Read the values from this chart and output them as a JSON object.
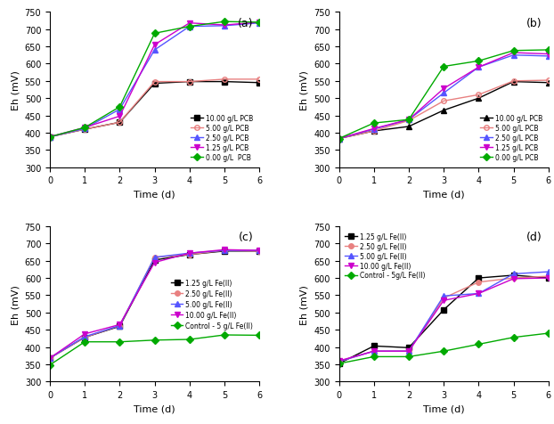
{
  "time": [
    0,
    1,
    2,
    3,
    4,
    5,
    6
  ],
  "subplot_a": {
    "legend_loc": "lower right",
    "legend_inside": true,
    "series": [
      {
        "label": "10.00 g/L PCB",
        "color": "#000000",
        "marker": "s",
        "mfc": "black",
        "values": [
          388,
          410,
          430,
          543,
          548,
          548,
          545
        ]
      },
      {
        "label": "5.00 g/L PCB",
        "color": "#e88080",
        "marker": "o",
        "mfc": "none",
        "values": [
          388,
          410,
          430,
          548,
          548,
          555,
          555
        ]
      },
      {
        "label": "2.50 g/L PCB",
        "color": "#5555ff",
        "marker": "^",
        "mfc": "#5555ff",
        "values": [
          388,
          412,
          468,
          640,
          708,
          710,
          718
        ]
      },
      {
        "label": "1.25 g/L PCB",
        "color": "#cc00cc",
        "marker": "v",
        "mfc": "#cc00cc",
        "values": [
          388,
          415,
          448,
          655,
          718,
          712,
          720
        ]
      },
      {
        "label": "0.00 g/L  PCB",
        "color": "#00aa00",
        "marker": "D",
        "mfc": "#00aa00",
        "values": [
          388,
          415,
          475,
          688,
          708,
          722,
          720
        ]
      }
    ]
  },
  "subplot_b": {
    "legend_loc": "lower right",
    "legend_inside": true,
    "series": [
      {
        "label": "10.00 g/L PCB",
        "color": "#000000",
        "marker": "^",
        "mfc": "black",
        "values": [
          383,
          405,
          418,
          465,
          500,
          548,
          545
        ]
      },
      {
        "label": "5.00 g/L PCB",
        "color": "#e88080",
        "marker": "o",
        "mfc": "none",
        "values": [
          383,
          405,
          435,
          492,
          510,
          550,
          552
        ]
      },
      {
        "label": "2.50 g/L PCB",
        "color": "#5555ff",
        "marker": "^",
        "mfc": "#5555ff",
        "values": [
          383,
          410,
          438,
          515,
          590,
          625,
          622
        ]
      },
      {
        "label": "1.25 g/L PCB",
        "color": "#cc00cc",
        "marker": "v",
        "mfc": "#cc00cc",
        "values": [
          383,
          412,
          438,
          528,
          590,
          632,
          628
        ]
      },
      {
        "label": "0.00 g/L PCB",
        "color": "#00aa00",
        "marker": "D",
        "mfc": "#00aa00",
        "values": [
          383,
          428,
          438,
          592,
          608,
          638,
          640
        ]
      }
    ]
  },
  "subplot_c": {
    "legend_loc": "center right",
    "legend_inside": true,
    "series": [
      {
        "label": "1.25 g/L Fe(II)",
        "color": "#000000",
        "marker": "s",
        "mfc": "black",
        "values": [
          368,
          428,
          460,
          652,
          668,
          678,
          678
        ]
      },
      {
        "label": "2.50 g/L Fe(II)",
        "color": "#e88080",
        "marker": "o",
        "mfc": "#e88080",
        "values": [
          368,
          428,
          462,
          660,
          668,
          680,
          678
        ]
      },
      {
        "label": "5.00 g/L Fe(II)",
        "color": "#5555ff",
        "marker": "^",
        "mfc": "#5555ff",
        "values": [
          368,
          430,
          462,
          660,
          672,
          680,
          680
        ]
      },
      {
        "label": "10.00 g/L Fe(II)",
        "color": "#cc00cc",
        "marker": "v",
        "mfc": "#cc00cc",
        "values": [
          368,
          438,
          465,
          645,
          672,
          682,
          680
        ]
      },
      {
        "label": "Control - 5 g/L Fe(II)",
        "color": "#00aa00",
        "marker": "D",
        "mfc": "#00aa00",
        "values": [
          348,
          415,
          415,
          420,
          422,
          435,
          434
        ]
      }
    ]
  },
  "subplot_d": {
    "legend_loc": "upper left",
    "legend_inside": true,
    "series": [
      {
        "label": "1.25 g/L Fe(II)",
        "color": "#000000",
        "marker": "s",
        "mfc": "black",
        "values": [
          352,
          403,
          398,
          508,
          600,
          608,
          600
        ]
      },
      {
        "label": "2.50 g/L Fe(II)",
        "color": "#e88080",
        "marker": "o",
        "mfc": "#e88080",
        "values": [
          358,
          388,
          388,
          542,
          588,
          600,
          605
        ]
      },
      {
        "label": "5.00 g/L Fe(II)",
        "color": "#5555ff",
        "marker": "^",
        "mfc": "#5555ff",
        "values": [
          358,
          388,
          388,
          548,
          555,
          612,
          618
        ]
      },
      {
        "label": "10.00 g/L Fe(II)",
        "color": "#cc00cc",
        "marker": "v",
        "mfc": "#cc00cc",
        "values": [
          360,
          388,
          388,
          535,
          555,
          598,
          600
        ]
      },
      {
        "label": "Control - 5g/L Fe(II)",
        "color": "#00aa00",
        "marker": "D",
        "mfc": "#00aa00",
        "values": [
          352,
          372,
          372,
          388,
          408,
          428,
          440
        ]
      }
    ]
  },
  "ylim": [
    300,
    750
  ],
  "yticks": [
    300,
    350,
    400,
    450,
    500,
    550,
    600,
    650,
    700,
    750
  ],
  "xlim": [
    0,
    6
  ],
  "xticks": [
    0,
    1,
    2,
    3,
    4,
    5,
    6
  ],
  "xlabel": "Time (d)",
  "ylabel": "Eh (mV)",
  "panel_labels": [
    "(a)",
    "(b)",
    "(c)",
    "(d)"
  ]
}
